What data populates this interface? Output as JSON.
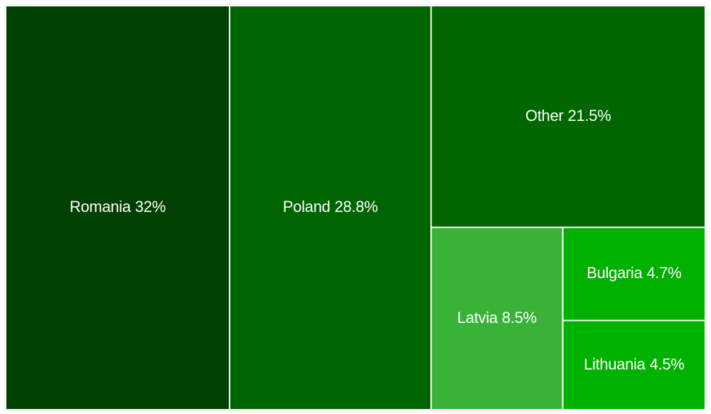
{
  "chart_data": {
    "type": "treemap",
    "categories": [
      "Romania",
      "Poland",
      "Other",
      "Latvia",
      "Bulgaria",
      "Lithuania"
    ],
    "values": [
      32,
      28.8,
      21.5,
      8.5,
      4.7,
      4.5
    ],
    "value_labels": [
      "32%",
      "28.8%",
      "21.5%",
      "8.5%",
      "4.7%",
      "4.5%"
    ],
    "colors": [
      "#004000",
      "#006400",
      "#006600",
      "#38b238",
      "#00b000",
      "#00b200"
    ]
  }
}
